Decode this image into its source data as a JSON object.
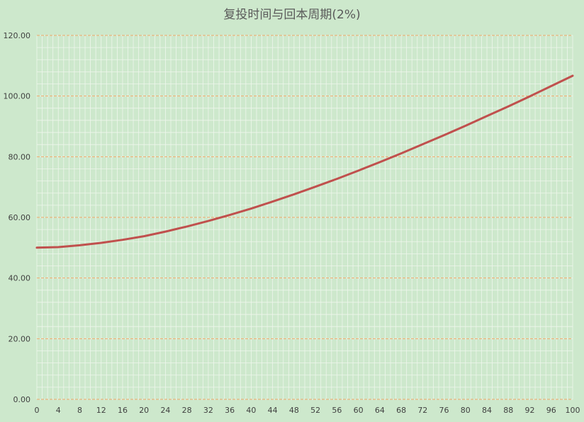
{
  "chart_data": {
    "type": "line",
    "title": "复投时间与回本周期(2%)",
    "xlabel": "",
    "ylabel": "",
    "xlim": [
      0,
      100
    ],
    "ylim": [
      0,
      120
    ],
    "x_ticks": [
      0,
      4,
      8,
      12,
      16,
      20,
      24,
      28,
      32,
      36,
      40,
      44,
      48,
      52,
      56,
      60,
      64,
      68,
      72,
      76,
      80,
      84,
      88,
      92,
      96,
      100
    ],
    "y_ticks": [
      "0.00",
      "20.00",
      "40.00",
      "60.00",
      "80.00",
      "100.00",
      "120.00"
    ],
    "grid": true,
    "legend": "none",
    "series": [
      {
        "color": "#c0504d",
        "x": [
          0,
          4,
          8,
          12,
          16,
          20,
          24,
          28,
          32,
          36,
          40,
          44,
          48,
          52,
          56,
          60,
          64,
          68,
          72,
          76,
          80,
          84,
          88,
          92,
          96,
          100
        ],
        "y": [
          50.0,
          50.2,
          50.8,
          51.6,
          52.6,
          53.8,
          55.3,
          57.0,
          58.8,
          60.8,
          62.9,
          65.2,
          67.6,
          70.1,
          72.7,
          75.4,
          78.2,
          81.1,
          84.1,
          87.1,
          90.2,
          93.4,
          96.6,
          99.9,
          103.3,
          106.7
        ]
      }
    ]
  },
  "colors": {
    "background": "#cde8cc",
    "major_grid": "#f0a868",
    "minor_grid": "#eef6ec",
    "line": "#c0504d"
  }
}
